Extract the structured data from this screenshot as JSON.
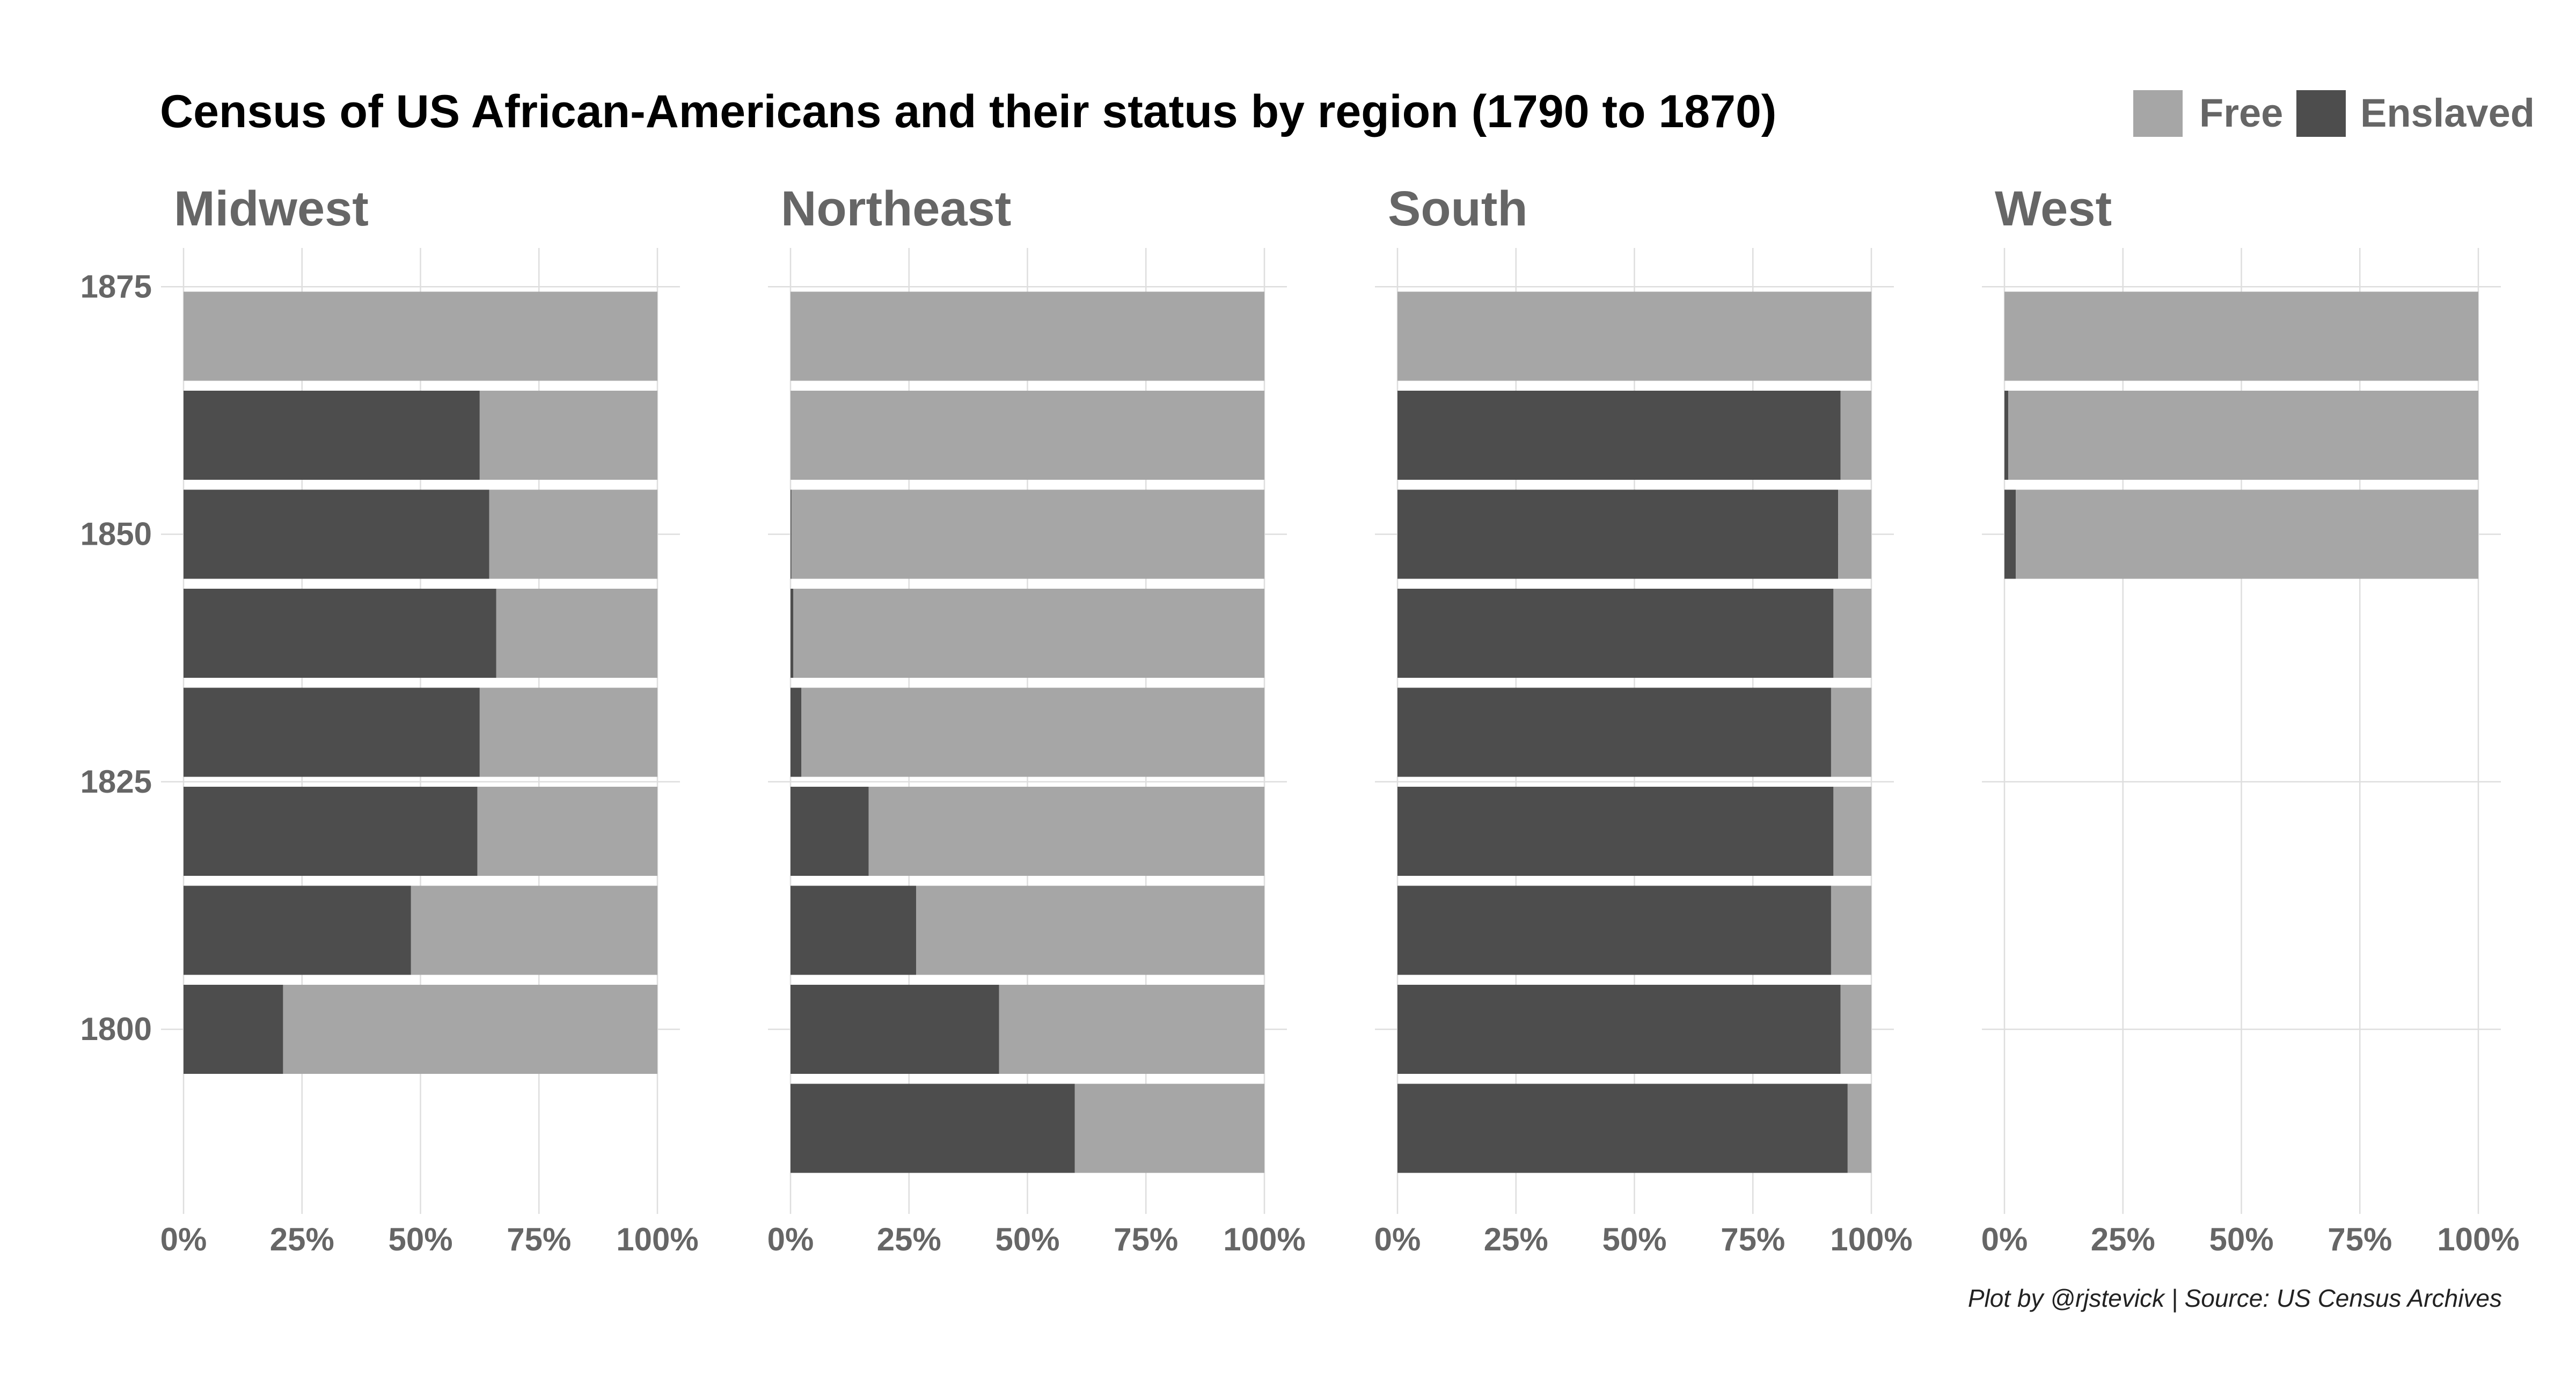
{
  "chart_data": {
    "type": "bar",
    "orientation": "horizontal",
    "stacked": "percent",
    "title": "Census of US African-Americans and their status by region (1790 to 1870)",
    "caption": "Plot by @rjstevick | Source: US Census Archives",
    "legend": {
      "placement": "top-right",
      "entries": [
        {
          "name": "Free",
          "color": "#a6a6a6"
        },
        {
          "name": "Enslaved",
          "color": "#4d4d4d"
        }
      ]
    },
    "y_axis": {
      "ticks": [
        1875,
        1850,
        1825,
        1800
      ],
      "range": [
        1785,
        1880
      ]
    },
    "x_axis": {
      "ticks": [
        "0%",
        "25%",
        "50%",
        "75%",
        "100%"
      ],
      "range": [
        0,
        1
      ]
    },
    "years": [
      1790,
      1800,
      1810,
      1820,
      1830,
      1840,
      1850,
      1860,
      1870
    ],
    "facets": [
      {
        "region": "Midwest",
        "bars": [
          {
            "year": 1800,
            "enslaved": 0.21,
            "free": 0.79
          },
          {
            "year": 1810,
            "enslaved": 0.48,
            "free": 0.52
          },
          {
            "year": 1820,
            "enslaved": 0.62,
            "free": 0.38
          },
          {
            "year": 1830,
            "enslaved": 0.625,
            "free": 0.375
          },
          {
            "year": 1840,
            "enslaved": 0.66,
            "free": 0.34
          },
          {
            "year": 1850,
            "enslaved": 0.645,
            "free": 0.355
          },
          {
            "year": 1860,
            "enslaved": 0.625,
            "free": 0.375
          },
          {
            "year": 1870,
            "enslaved": 0.0,
            "free": 1.0
          }
        ]
      },
      {
        "region": "Northeast",
        "bars": [
          {
            "year": 1790,
            "enslaved": 0.6,
            "free": 0.4
          },
          {
            "year": 1800,
            "enslaved": 0.44,
            "free": 0.56
          },
          {
            "year": 1810,
            "enslaved": 0.265,
            "free": 0.735
          },
          {
            "year": 1820,
            "enslaved": 0.165,
            "free": 0.835
          },
          {
            "year": 1830,
            "enslaved": 0.023,
            "free": 0.977
          },
          {
            "year": 1840,
            "enslaved": 0.006,
            "free": 0.994
          },
          {
            "year": 1850,
            "enslaved": 0.002,
            "free": 0.998
          },
          {
            "year": 1860,
            "enslaved": 0.0,
            "free": 1.0
          },
          {
            "year": 1870,
            "enslaved": 0.0,
            "free": 1.0
          }
        ]
      },
      {
        "region": "South",
        "bars": [
          {
            "year": 1790,
            "enslaved": 0.95,
            "free": 0.05
          },
          {
            "year": 1800,
            "enslaved": 0.935,
            "free": 0.065
          },
          {
            "year": 1810,
            "enslaved": 0.915,
            "free": 0.085
          },
          {
            "year": 1820,
            "enslaved": 0.92,
            "free": 0.08
          },
          {
            "year": 1830,
            "enslaved": 0.915,
            "free": 0.085
          },
          {
            "year": 1840,
            "enslaved": 0.92,
            "free": 0.08
          },
          {
            "year": 1850,
            "enslaved": 0.93,
            "free": 0.07
          },
          {
            "year": 1860,
            "enslaved": 0.935,
            "free": 0.065
          },
          {
            "year": 1870,
            "enslaved": 0.0,
            "free": 1.0
          }
        ]
      },
      {
        "region": "West",
        "bars": [
          {
            "year": 1850,
            "enslaved": 0.024,
            "free": 0.976
          },
          {
            "year": 1860,
            "enslaved": 0.008,
            "free": 0.992
          },
          {
            "year": 1870,
            "enslaved": 0.0,
            "free": 1.0
          }
        ]
      }
    ]
  }
}
